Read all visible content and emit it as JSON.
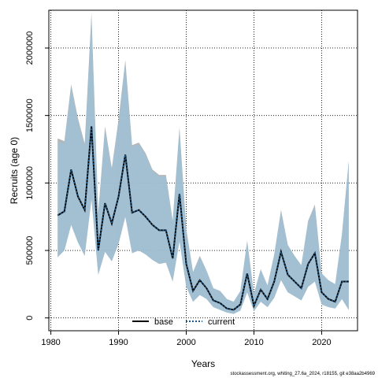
{
  "chart_data": {
    "type": "line",
    "xlabel": "Years",
    "ylabel": "Recruits (age 0)",
    "xlim": [
      1979.7,
      2025.3
    ],
    "ylim": [
      -95000,
      2280000
    ],
    "x_ticks": [
      1980,
      1990,
      2000,
      2010,
      2020
    ],
    "y_ticks": [
      0,
      500000,
      1000000,
      1500000,
      2000000
    ],
    "grid": true,
    "legend_position": "bottom-center",
    "footnote": "stockassessment.org, whiting_27.6a_2024, r18155, git e38aa2b4969",
    "colors": {
      "base_line": "#000000",
      "current_line": "#1f5a8c",
      "base_band": "#a9a9a9",
      "current_band": "#9cc3dc"
    },
    "x": [
      1981,
      1982,
      1983,
      1984,
      1985,
      1986,
      1987,
      1988,
      1989,
      1990,
      1991,
      1992,
      1993,
      1994,
      1995,
      1996,
      1997,
      1998,
      1999,
      2000,
      2001,
      2002,
      2003,
      2004,
      2005,
      2006,
      2007,
      2008,
      2009,
      2010,
      2011,
      2012,
      2013,
      2014,
      2015,
      2016,
      2017,
      2018,
      2019,
      2020,
      2021,
      2022,
      2023,
      2024
    ],
    "series": [
      {
        "name": "base",
        "values": [
          760000,
          790000,
          1100000,
          900000,
          800000,
          1420000,
          500000,
          850000,
          700000,
          900000,
          1210000,
          780000,
          800000,
          750000,
          690000,
          650000,
          650000,
          440000,
          920000,
          400000,
          200000,
          280000,
          220000,
          130000,
          110000,
          70000,
          60000,
          100000,
          330000,
          90000,
          210000,
          140000,
          270000,
          490000,
          320000,
          270000,
          220000,
          400000,
          480000,
          190000,
          140000,
          120000,
          270000,
          270000
        ],
        "lower": [
          450000,
          500000,
          690000,
          560000,
          460000,
          880000,
          320000,
          490000,
          420000,
          550000,
          750000,
          480000,
          500000,
          470000,
          430000,
          400000,
          410000,
          270000,
          570000,
          230000,
          120000,
          170000,
          140000,
          80000,
          60000,
          40000,
          30000,
          55000,
          190000,
          50000,
          120000,
          80000,
          150000,
          280000,
          190000,
          160000,
          130000,
          230000,
          270000,
          100000,
          80000,
          70000,
          140000,
          60000
        ],
        "upper": [
          1330000,
          1310000,
          1730000,
          1480000,
          1290000,
          2260000,
          780000,
          1420000,
          1110000,
          1470000,
          1910000,
          1280000,
          1300000,
          1220000,
          1100000,
          1060000,
          1060000,
          720000,
          1410000,
          660000,
          340000,
          460000,
          350000,
          220000,
          200000,
          140000,
          120000,
          200000,
          570000,
          180000,
          360000,
          240000,
          470000,
          800000,
          540000,
          460000,
          390000,
          720000,
          840000,
          330000,
          280000,
          250000,
          620000,
          1160000
        ]
      },
      {
        "name": "current",
        "values": [
          760000,
          790000,
          1100000,
          900000,
          800000,
          1420000,
          500000,
          850000,
          700000,
          900000,
          1210000,
          780000,
          800000,
          750000,
          690000,
          650000,
          650000,
          440000,
          920000,
          400000,
          200000,
          280000,
          220000,
          130000,
          110000,
          70000,
          60000,
          100000,
          330000,
          90000,
          210000,
          140000,
          270000,
          490000,
          320000,
          270000,
          220000,
          400000,
          480000,
          190000,
          140000,
          120000,
          270000,
          270000
        ],
        "lower": [
          450000,
          500000,
          690000,
          560000,
          460000,
          880000,
          320000,
          490000,
          420000,
          550000,
          750000,
          480000,
          500000,
          470000,
          430000,
          400000,
          410000,
          270000,
          570000,
          230000,
          120000,
          170000,
          140000,
          80000,
          60000,
          40000,
          30000,
          55000,
          190000,
          50000,
          120000,
          80000,
          150000,
          280000,
          190000,
          160000,
          130000,
          230000,
          270000,
          100000,
          80000,
          70000,
          140000,
          60000
        ],
        "upper": [
          1310000,
          1290000,
          1710000,
          1460000,
          1270000,
          2230000,
          770000,
          1400000,
          1100000,
          1450000,
          1890000,
          1270000,
          1290000,
          1210000,
          1090000,
          1050000,
          1050000,
          710000,
          1400000,
          650000,
          340000,
          450000,
          350000,
          220000,
          200000,
          140000,
          120000,
          200000,
          570000,
          180000,
          360000,
          240000,
          470000,
          790000,
          540000,
          460000,
          390000,
          710000,
          830000,
          330000,
          280000,
          250000,
          620000,
          1160000
        ]
      }
    ]
  }
}
